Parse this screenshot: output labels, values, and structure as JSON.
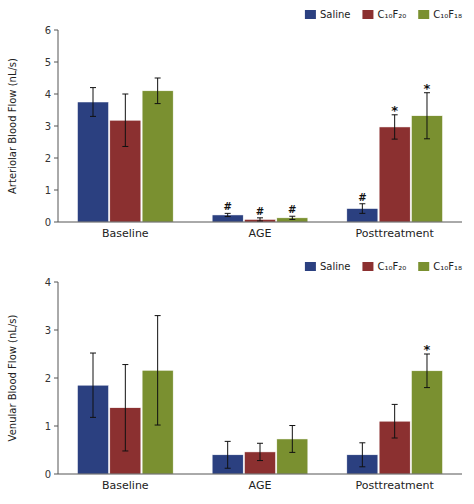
{
  "chart_data": [
    {
      "type": "bar",
      "ylabel": "Arteriolar Blood Flow (nL/s)",
      "categories": [
        "Baseline",
        "AGE",
        "Posttreatment"
      ],
      "series": [
        {
          "name": "Saline",
          "color": "#2b4080",
          "values": [
            3.75,
            0.22,
            0.42
          ],
          "errors": [
            0.45,
            0.05,
            0.15
          ],
          "annotations": [
            null,
            "#",
            "#"
          ]
        },
        {
          "name": "C₁₀F₂₀",
          "color": "#8b3030",
          "values": [
            3.18,
            0.08,
            2.97
          ],
          "errors": [
            0.82,
            0.05,
            0.38
          ],
          "annotations": [
            null,
            "#",
            "*"
          ]
        },
        {
          "name": "C₁₀F₁₈",
          "color": "#7a9030",
          "values": [
            4.1,
            0.13,
            3.32
          ],
          "errors": [
            0.4,
            0.05,
            0.72
          ],
          "annotations": [
            null,
            "#",
            "*"
          ]
        }
      ],
      "ylim": [
        0,
        6.0
      ],
      "yticks": [
        0,
        1,
        2,
        3,
        4,
        5,
        6
      ],
      "legend": "upper right"
    },
    {
      "type": "bar",
      "ylabel": "Venular Blood Flow (nL/s)",
      "categories": [
        "Baseline",
        "AGE",
        "Posttreatment"
      ],
      "series": [
        {
          "name": "Saline",
          "color": "#2b4080",
          "values": [
            1.85,
            0.4,
            0.4
          ],
          "errors": [
            0.67,
            0.28,
            0.25
          ]
        },
        {
          "name": "C₁₀F₂₀",
          "color": "#8b3030",
          "values": [
            1.38,
            0.46,
            1.1
          ],
          "errors": [
            0.9,
            0.18,
            0.35
          ]
        },
        {
          "name": "C₁₀F₁₈",
          "color": "#7a9030",
          "values": [
            2.16,
            0.73,
            2.15
          ],
          "errors": [
            1.14,
            0.28,
            0.35
          ],
          "annotations": [
            null,
            null,
            "*"
          ]
        }
      ],
      "ylim": [
        0,
        4.0
      ],
      "yticks": [
        0,
        1,
        2,
        3,
        4
      ],
      "legend": "upper right"
    }
  ]
}
